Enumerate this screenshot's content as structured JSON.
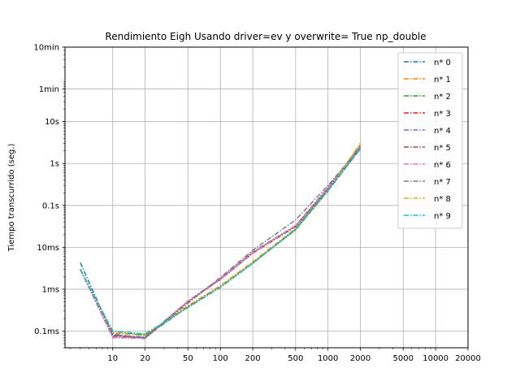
{
  "chart_data": {
    "type": "line",
    "title": "Rendimiento   Eigh Usando driver=ev y overwrite= True np_double",
    "xlabel": "",
    "ylabel": "Tiempo transcurrido (seg.)",
    "x_scale": "log",
    "y_scale": "log",
    "xlim": [
      3.6,
      20000
    ],
    "ylim": [
      4e-05,
      600
    ],
    "x_ticks": [
      {
        "value": 10,
        "label": "10"
      },
      {
        "value": 20,
        "label": "20"
      },
      {
        "value": 50,
        "label": "50"
      },
      {
        "value": 100,
        "label": "100"
      },
      {
        "value": 200,
        "label": "200"
      },
      {
        "value": 500,
        "label": "500"
      },
      {
        "value": 1000,
        "label": "1000"
      },
      {
        "value": 2000,
        "label": "2000"
      },
      {
        "value": 5000,
        "label": "5000"
      },
      {
        "value": 10000,
        "label": "10000"
      },
      {
        "value": 20000,
        "label": "20000"
      }
    ],
    "y_ticks": [
      {
        "value": 0.0001,
        "label": "0.1ms"
      },
      {
        "value": 0.001,
        "label": "1ms"
      },
      {
        "value": 0.01,
        "label": "10ms"
      },
      {
        "value": 0.1,
        "label": "0.1s"
      },
      {
        "value": 1,
        "label": "1s"
      },
      {
        "value": 10,
        "label": "10s"
      },
      {
        "value": 60,
        "label": "1min"
      },
      {
        "value": 600,
        "label": "10min"
      }
    ],
    "grid": true,
    "legend_position": "top-right",
    "line_style": "dash-dot",
    "series": [
      {
        "name": "n* 0",
        "color": "#1f77b4",
        "x": [
          5,
          10,
          20,
          50,
          100,
          200,
          500,
          1000,
          2000
        ],
        "y": [
          0.0043,
          8e-05,
          7.2e-05,
          0.00038,
          0.0012,
          0.0042,
          0.026,
          0.22,
          2.3
        ]
      },
      {
        "name": "n* 1",
        "color": "#ff7f0e",
        "x": [
          5,
          10,
          20,
          50,
          100,
          200,
          500,
          1000,
          2000
        ],
        "y": [
          0.003,
          9e-05,
          8e-05,
          0.0004,
          0.0012,
          0.0045,
          0.028,
          0.25,
          2.8
        ]
      },
      {
        "name": "n* 2",
        "color": "#2ca02c",
        "x": [
          5,
          10,
          20,
          50,
          100,
          200,
          500,
          1000,
          2000
        ],
        "y": [
          0.0029,
          0.0001,
          8e-05,
          0.00037,
          0.0011,
          0.0042,
          0.027,
          0.24,
          2.6
        ]
      },
      {
        "name": "n* 3",
        "color": "#d62728",
        "x": [
          5,
          10,
          20,
          50,
          100,
          200,
          500,
          1000,
          2000
        ],
        "y": [
          0.003,
          7e-05,
          7e-05,
          0.0005,
          0.0017,
          0.0075,
          0.032,
          0.26,
          2.5
        ]
      },
      {
        "name": "n* 4",
        "color": "#9467bd",
        "x": [
          5,
          10,
          20,
          50,
          100,
          200,
          500,
          1000,
          2000
        ],
        "y": [
          0.003,
          7.5e-05,
          7e-05,
          0.00052,
          0.0018,
          0.0078,
          0.033,
          0.27,
          2.6
        ]
      },
      {
        "name": "n* 5",
        "color": "#8c564b",
        "x": [
          5,
          10,
          20,
          50,
          100,
          200,
          500,
          1000,
          2000
        ],
        "y": [
          0.003,
          8e-05,
          6.8e-05,
          0.0005,
          0.0017,
          0.0072,
          0.031,
          0.25,
          2.4
        ]
      },
      {
        "name": "n* 6",
        "color": "#e377c2",
        "x": [
          5,
          10,
          20,
          50,
          100,
          200,
          500,
          1000,
          2000
        ],
        "y": [
          0.0029,
          7e-05,
          6.6e-05,
          0.0005,
          0.0017,
          0.0074,
          0.032,
          0.26,
          2.5
        ]
      },
      {
        "name": "n* 7",
        "color": "#7f7f7f",
        "x": [
          5,
          10,
          20,
          50,
          100,
          200,
          500,
          1000,
          2000
        ],
        "y": [
          0.003,
          8.5e-05,
          6.8e-05,
          0.00046,
          0.0019,
          0.0085,
          0.045,
          0.3,
          2.4
        ]
      },
      {
        "name": "n* 8",
        "color": "#bcbd22",
        "x": [
          5,
          10,
          20,
          50,
          100,
          200,
          500,
          1000,
          2000
        ],
        "y": [
          0.003,
          0.0001,
          8.5e-05,
          0.00036,
          0.0011,
          0.0043,
          0.026,
          0.22,
          3.1
        ]
      },
      {
        "name": "n* 9",
        "color": "#17becf",
        "x": [
          5,
          10,
          20,
          50,
          100,
          200,
          500,
          1000,
          2000
        ],
        "y": [
          0.0029,
          0.0001,
          8.5e-05,
          0.00037,
          0.0011,
          0.0041,
          0.027,
          0.23,
          2.2
        ]
      }
    ]
  }
}
